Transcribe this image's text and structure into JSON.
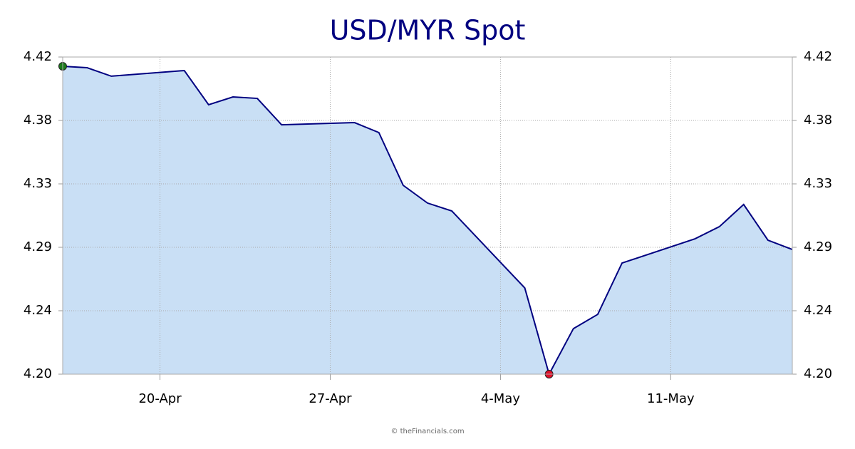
{
  "chart_data": {
    "type": "area",
    "title": "USD/MYR Spot",
    "footer": "© theFinancials.com",
    "x": [
      "16-Apr",
      "17-Apr",
      "18-Apr",
      "21-Apr",
      "22-Apr",
      "23-Apr",
      "24-Apr",
      "25-Apr",
      "28-Apr",
      "29-Apr",
      "30-Apr",
      "1-May",
      "2-May",
      "5-May",
      "6-May",
      "7-May",
      "8-May",
      "9-May",
      "12-May",
      "13-May",
      "14-May",
      "15-May",
      "16-May"
    ],
    "values": [
      4.4136,
      4.4126,
      4.4067,
      4.4106,
      4.3869,
      4.3923,
      4.3913,
      4.373,
      4.3745,
      4.3676,
      4.331,
      4.3187,
      4.3132,
      4.2598,
      4.2,
      4.2316,
      4.2415,
      4.2771,
      4.2939,
      4.3023,
      4.3177,
      4.2929,
      4.2865
    ],
    "color": "#000080",
    "fill_color": "#c9dff5",
    "high_marker_color": "#1a7a1a",
    "low_marker_color": "#e0102a",
    "xlim": [
      "16-Apr",
      "16-May"
    ],
    "xticks": [
      "20-Apr",
      "27-Apr",
      "4-May",
      "11-May"
    ],
    "ylim": [
      4.2,
      4.42
    ],
    "yticks": [
      {
        "value": 4.2,
        "label": "4.20"
      },
      {
        "value": 4.244,
        "label": "4.24"
      },
      {
        "value": 4.288,
        "label": "4.29"
      },
      {
        "value": 4.332,
        "label": "4.33"
      },
      {
        "value": 4.376,
        "label": "4.38"
      },
      4.42
    ],
    "grid": true,
    "right_axis_labels": true
  }
}
